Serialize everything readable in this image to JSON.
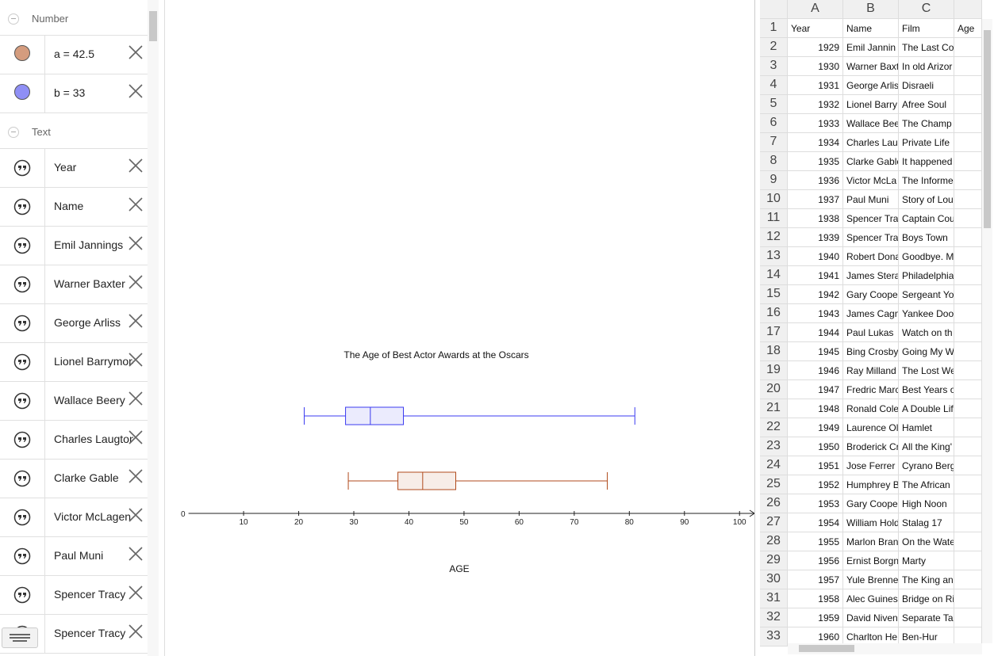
{
  "algebra_view": {
    "sections": [
      {
        "title": "Number",
        "items": [
          {
            "text": "a = 42.5",
            "color": "#d49c7e"
          },
          {
            "text": "b = 33",
            "color": "#8f8ff5"
          }
        ]
      },
      {
        "title": "Text",
        "items": [
          {
            "text": "Year"
          },
          {
            "text": "Name"
          },
          {
            "text": "Emil Jannings"
          },
          {
            "text": "Warner Baxter"
          },
          {
            "text": "George Arliss"
          },
          {
            "text": "Lionel Barrymore"
          },
          {
            "text": "Wallace Beery"
          },
          {
            "text": "Charles Laugton"
          },
          {
            "text": "Clarke Gable"
          },
          {
            "text": "Victor McLagen"
          },
          {
            "text": "Paul Muni"
          },
          {
            "text": "Spencer Tracy"
          },
          {
            "text": "Spencer Tracy"
          }
        ]
      }
    ]
  },
  "graphics": {
    "type": "boxplot",
    "title": "The Age of Best Actor Awards at the Oscars",
    "x_label": "AGE",
    "xlim": [
      0,
      102.7
    ],
    "xticks": [
      0,
      10,
      20,
      30,
      40,
      50,
      60,
      70,
      80,
      90,
      100
    ],
    "boxplots": [
      {
        "color": "#3b3bf0",
        "min": 21,
        "q1": 28.5,
        "median": 33,
        "q3": 39,
        "max": 81
      },
      {
        "color": "#b04a1c",
        "min": 29,
        "q1": 38,
        "median": 42.5,
        "q3": 48.5,
        "max": 76
      }
    ]
  },
  "spreadsheet": {
    "column_labels": [
      "A",
      "B",
      "C"
    ],
    "row_labels": [
      1,
      2,
      3,
      4,
      5,
      6,
      7,
      8,
      9,
      10,
      11,
      12,
      13,
      14,
      15,
      16,
      17,
      18,
      19,
      20,
      21,
      22,
      23,
      24,
      25,
      26,
      27,
      28,
      29,
      30,
      31,
      32,
      33
    ],
    "rows": [
      [
        "Year",
        "Name",
        "Film",
        "Age"
      ],
      [
        1929,
        "Emil Jannin",
        "The Last Co"
      ],
      [
        1930,
        "Warner Baxt",
        "In old Arizor"
      ],
      [
        1931,
        "George Arlis",
        "Disraeli"
      ],
      [
        1932,
        "Lionel Barry",
        "Afree Soul"
      ],
      [
        1933,
        "Wallace Bee",
        "The Champ"
      ],
      [
        1934,
        "Charles Lau",
        "Private Life"
      ],
      [
        1935,
        "Clarke Gable",
        "It happened"
      ],
      [
        1936,
        "Victor McLa",
        "The Informe"
      ],
      [
        1937,
        "Paul Muni",
        "Story of Lou"
      ],
      [
        1938,
        "Spencer Tra",
        "Captain Cou"
      ],
      [
        1939,
        "Spencer Tra",
        "Boys Town"
      ],
      [
        1940,
        "Robert Dona",
        "Goodbye. M"
      ],
      [
        1941,
        "James Stera",
        "Philadelphia"
      ],
      [
        1942,
        "Gary Cooper",
        "Sergeant Yo"
      ],
      [
        1943,
        "James Cagn",
        "Yankee Dood"
      ],
      [
        1944,
        "Paul Lukas",
        "Watch on th"
      ],
      [
        1945,
        "Bing Crosby",
        "Going My W"
      ],
      [
        1946,
        "Ray Milland",
        "The Lost We"
      ],
      [
        1947,
        "Fredric Marc",
        "Best Years o"
      ],
      [
        1948,
        "Ronald Cole",
        "A Double Lif"
      ],
      [
        1949,
        "Laurence Ol",
        "Hamlet"
      ],
      [
        1950,
        "Broderick Cr",
        "All the King'"
      ],
      [
        1951,
        "Jose Ferrer",
        "Cyrano Berg"
      ],
      [
        1952,
        "Humphrey B",
        "The African"
      ],
      [
        1953,
        "Gary Cooper",
        "High Noon"
      ],
      [
        1954,
        "William Hold",
        "Stalag 17"
      ],
      [
        1955,
        "Marlon Bran",
        "On the Wate"
      ],
      [
        1956,
        "Ernist Borgn",
        "Marty"
      ],
      [
        1957,
        "Yule Brenne",
        "The King an"
      ],
      [
        1958,
        "Alec Guines",
        "Bridge on Ri"
      ],
      [
        1959,
        "David Niven",
        "Separate Ta"
      ],
      [
        1960,
        "Charlton He",
        "Ben-Hur"
      ]
    ]
  }
}
